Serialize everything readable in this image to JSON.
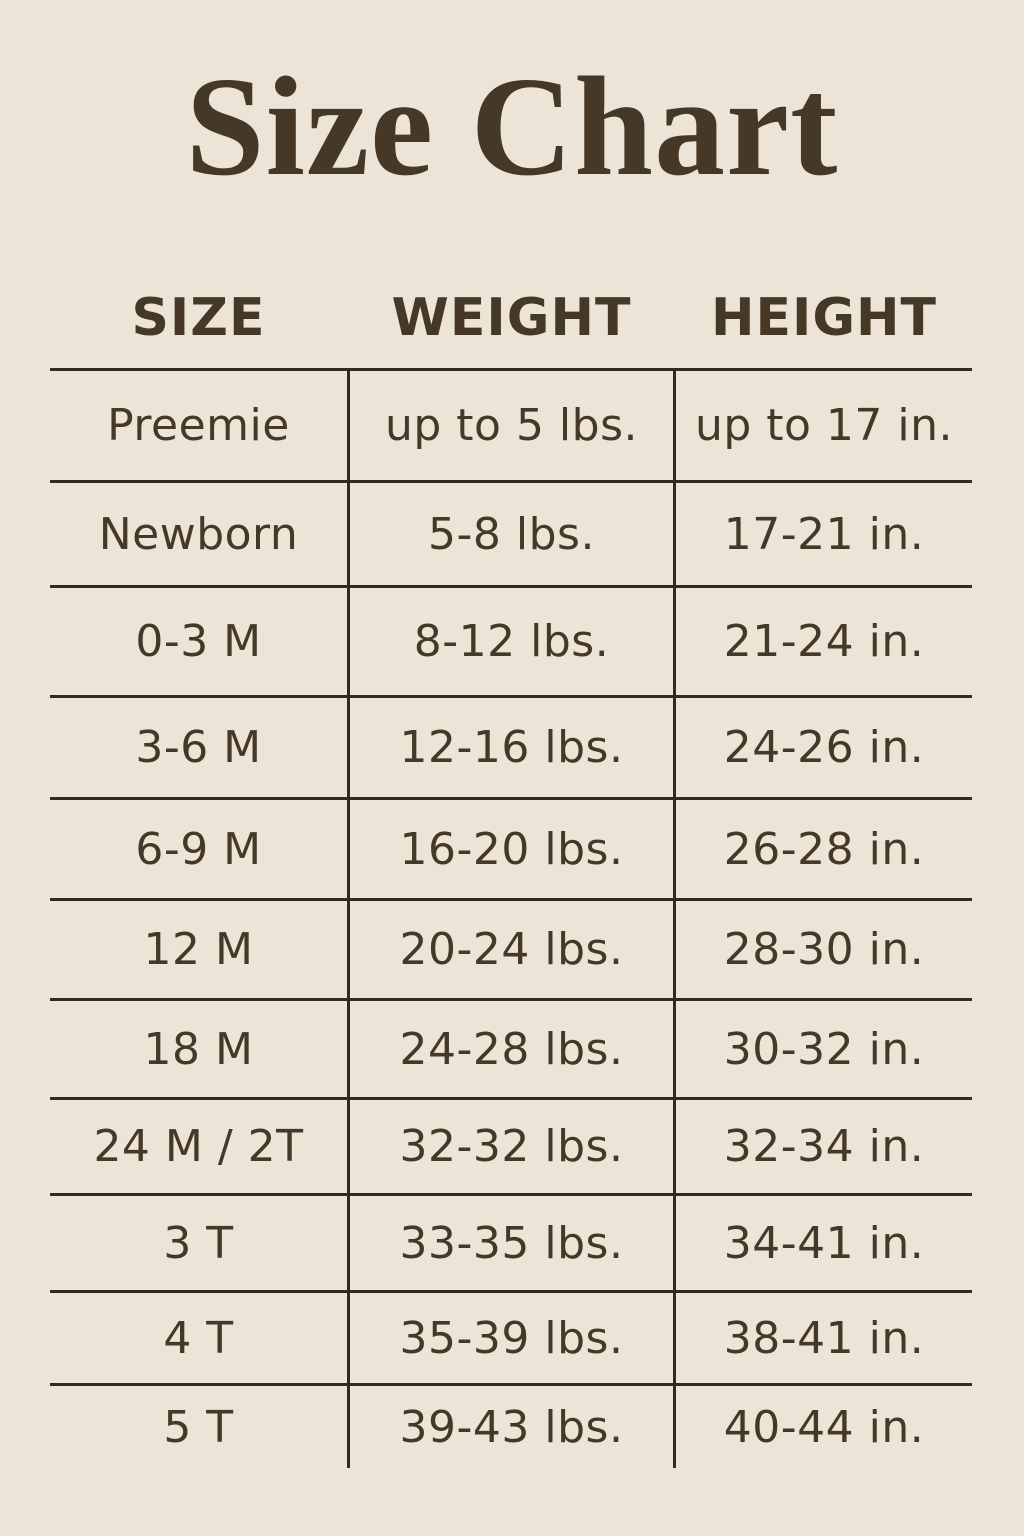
{
  "title": "Size Chart",
  "colors": {
    "background": "#ece5d7",
    "text": "#453827",
    "line": "#32291f"
  },
  "chart_data": {
    "type": "table",
    "title": "Size Chart",
    "columns": [
      "SIZE",
      "WEIGHT",
      "HEIGHT"
    ],
    "rows": [
      [
        "Preemie",
        "up to 5 lbs.",
        "up to 17 in."
      ],
      [
        "Newborn",
        "5-8 lbs.",
        "17-21 in."
      ],
      [
        "0-3 M",
        "8-12 lbs.",
        "21-24 in."
      ],
      [
        "3-6 M",
        "12-16 lbs.",
        "24-26 in."
      ],
      [
        "6-9 M",
        "16-20 lbs.",
        "26-28 in."
      ],
      [
        "12 M",
        "20-24 lbs.",
        "28-30 in."
      ],
      [
        "18 M",
        "24-28 lbs.",
        "30-32 in."
      ],
      [
        "24 M / 2T",
        "32-32 lbs.",
        "32-34 in."
      ],
      [
        "3 T",
        "33-35 lbs.",
        "34-41 in."
      ],
      [
        "4 T",
        "35-39 lbs.",
        "38-41 in."
      ],
      [
        "5 T",
        "39-43 lbs.",
        "40-44 in."
      ]
    ],
    "layout": {
      "grid": "horizontal rules between all rows, two inner vertical dividers, no outer side borders",
      "header_position": "above first rule, no box"
    }
  }
}
